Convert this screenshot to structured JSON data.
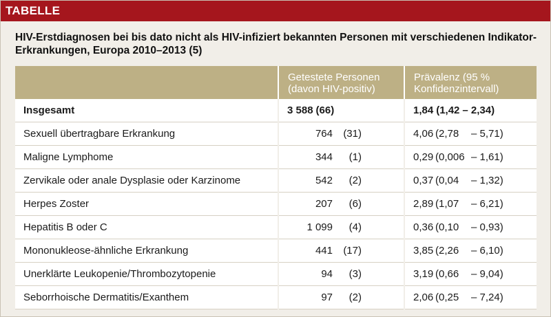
{
  "header": {
    "label": "TABELLE"
  },
  "title": "HIV-Erstdiagnosen bei bis dato nicht als HIV-infiziert bekannten Personen mit verschiedenen Indikator-Erkrankungen, Europa 2010–2013 (5)",
  "columns": {
    "col1": "",
    "col2": "Getestete Personen (davon HIV-positiv)",
    "col3": "Prävalenz (95 % Konfidenzintervall)"
  },
  "rows": [
    {
      "label": "Insgesamt",
      "tested": "3 588",
      "positive": "(66)",
      "prevalence": "1,84",
      "ci_low": "(1,42",
      "ci_high": "– 2,34)"
    },
    {
      "label": "Sexuell übertragbare Erkrankung",
      "tested": "764",
      "positive": "(31)",
      "prevalence": "4,06",
      "ci_low": "(2,78",
      "ci_high": "– 5,71)"
    },
    {
      "label": "Maligne Lymphome",
      "tested": "344",
      "positive": "(1)",
      "prevalence": "0,29",
      "ci_low": "(0,006",
      "ci_high": "– 1,61)"
    },
    {
      "label": "Zervikale oder anale Dysplasie oder Karzinome",
      "tested": "542",
      "positive": "(2)",
      "prevalence": "0,37",
      "ci_low": "(0,04",
      "ci_high": "– 1,32)"
    },
    {
      "label": "Herpes Zoster",
      "tested": "207",
      "positive": "(6)",
      "prevalence": "2,89",
      "ci_low": "(1,07",
      "ci_high": "– 6,21)"
    },
    {
      "label": "Hepatitis B oder C",
      "tested": "1 099",
      "positive": "(4)",
      "prevalence": "0,36",
      "ci_low": "(0,10",
      "ci_high": "– 0,93)"
    },
    {
      "label": "Mononukleose-ähnliche Erkrankung",
      "tested": "441",
      "positive": "(17)",
      "prevalence": "3,85",
      "ci_low": "(2,26",
      "ci_high": "– 6,10)"
    },
    {
      "label": "Unerklärte Leukopenie/Thrombozytopenie",
      "tested": "94",
      "positive": "(3)",
      "prevalence": "3,19",
      "ci_low": "(0,66",
      "ci_high": "– 9,04)"
    },
    {
      "label": "Seborrhoische Dermatitis/Exanthem",
      "tested": "97",
      "positive": "(2)",
      "prevalence": "2,06",
      "ci_low": "(0,25",
      "ci_high": "– 7,24)"
    }
  ],
  "colors": {
    "header_red": "#a5161d",
    "table_header": "#bdb085",
    "background": "#f1eee8"
  }
}
